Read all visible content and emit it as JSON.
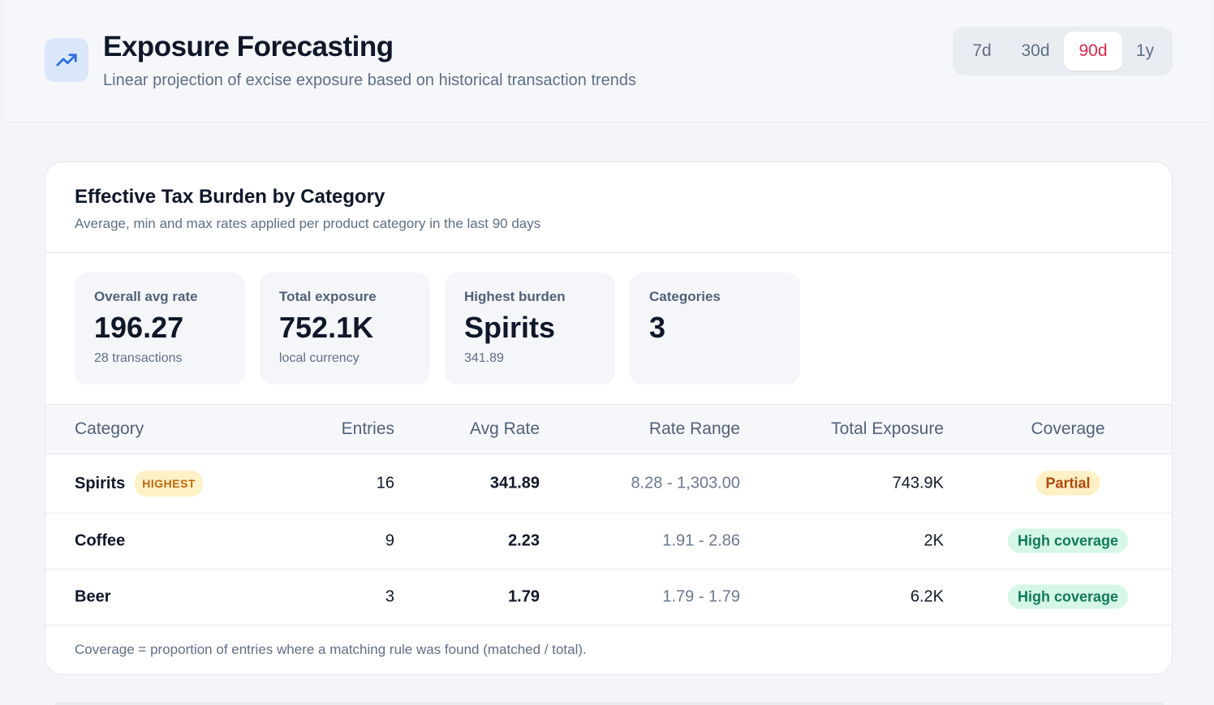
{
  "header": {
    "title": "Exposure Forecasting",
    "subtitle": "Linear projection of excise exposure based on historical transaction trends",
    "icon": "trending-up-icon",
    "accent_color": "#2f6fe0"
  },
  "range_selector": {
    "options": [
      "7d",
      "30d",
      "90d",
      "1y"
    ],
    "selected": "90d",
    "active_color": "#dc2649"
  },
  "card": {
    "title": "Effective Tax Burden by Category",
    "subtitle": "Average, min and max rates applied per product category in the last 90 days",
    "stats": [
      {
        "label": "Overall avg rate",
        "value": "196.27",
        "note": "28 transactions"
      },
      {
        "label": "Total exposure",
        "value": "752.1K",
        "note": "local currency"
      },
      {
        "label": "Highest burden",
        "value": "Spirits",
        "note": "341.89"
      },
      {
        "label": "Categories",
        "value": "3",
        "note": ""
      }
    ],
    "table": {
      "headers": [
        "Category",
        "Entries",
        "Avg Rate",
        "Rate Range",
        "Total Exposure",
        "Coverage"
      ],
      "rows": [
        {
          "category": "Spirits",
          "badge": "HIGHEST",
          "entries": "16",
          "avg_rate": "341.89",
          "rate_range": "8.28 - 1,303.00",
          "total_exposure": "743.9K",
          "coverage": "Partial"
        },
        {
          "category": "Coffee",
          "badge": "",
          "entries": "9",
          "avg_rate": "2.23",
          "rate_range": "1.91 - 2.86",
          "total_exposure": "2K",
          "coverage": "High coverage"
        },
        {
          "category": "Beer",
          "badge": "",
          "entries": "3",
          "avg_rate": "1.79",
          "rate_range": "1.79 - 1.79",
          "total_exposure": "6.2K",
          "coverage": "High coverage"
        }
      ]
    },
    "footnote": "Coverage = proportion of entries where a matching rule was found (matched / total)."
  }
}
